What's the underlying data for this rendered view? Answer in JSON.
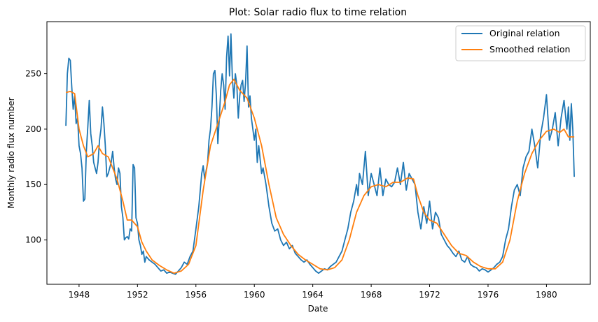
{
  "chart_data": {
    "type": "line",
    "title": "Plot: Solar radio flux to time relation",
    "xlabel": "Date",
    "ylabel": "Monthly radio flux number",
    "xlim": [
      1945.8,
      1983.0
    ],
    "ylim": [
      60,
      297
    ],
    "x_ticks": [
      1948,
      1952,
      1956,
      1960,
      1964,
      1968,
      1972,
      1976,
      1980
    ],
    "y_ticks": [
      100,
      150,
      200,
      250
    ],
    "legend_position": "top-right",
    "grid": false,
    "series": [
      {
        "name": "Original relation",
        "color": "#1f77b4",
        "points": [
          [
            1947.1,
            203
          ],
          [
            1947.2,
            250
          ],
          [
            1947.3,
            264
          ],
          [
            1947.4,
            262
          ],
          [
            1947.5,
            238
          ],
          [
            1947.6,
            218
          ],
          [
            1947.7,
            230
          ],
          [
            1947.8,
            205
          ],
          [
            1947.9,
            210
          ],
          [
            1948.0,
            185
          ],
          [
            1948.1,
            178
          ],
          [
            1948.2,
            165
          ],
          [
            1948.3,
            135
          ],
          [
            1948.4,
            137
          ],
          [
            1948.5,
            180
          ],
          [
            1948.6,
            202
          ],
          [
            1948.7,
            226
          ],
          [
            1948.8,
            196
          ],
          [
            1948.9,
            185
          ],
          [
            1949.0,
            170
          ],
          [
            1949.1,
            165
          ],
          [
            1949.2,
            160
          ],
          [
            1949.3,
            170
          ],
          [
            1949.4,
            190
          ],
          [
            1949.5,
            200
          ],
          [
            1949.6,
            220
          ],
          [
            1949.7,
            205
          ],
          [
            1949.8,
            185
          ],
          [
            1949.9,
            157
          ],
          [
            1950.0,
            160
          ],
          [
            1950.1,
            165
          ],
          [
            1950.2,
            170
          ],
          [
            1950.3,
            180
          ],
          [
            1950.4,
            165
          ],
          [
            1950.5,
            155
          ],
          [
            1950.6,
            150
          ],
          [
            1950.7,
            165
          ],
          [
            1950.8,
            160
          ],
          [
            1950.9,
            130
          ],
          [
            1951.0,
            120
          ],
          [
            1951.1,
            100
          ],
          [
            1951.2,
            102
          ],
          [
            1951.3,
            103
          ],
          [
            1951.4,
            101
          ],
          [
            1951.5,
            110
          ],
          [
            1951.6,
            108
          ],
          [
            1951.7,
            168
          ],
          [
            1951.8,
            165
          ],
          [
            1951.9,
            120
          ],
          [
            1952.0,
            115
          ],
          [
            1952.1,
            100
          ],
          [
            1952.2,
            95
          ],
          [
            1952.3,
            87
          ],
          [
            1952.4,
            90
          ],
          [
            1952.5,
            80
          ],
          [
            1952.6,
            85
          ],
          [
            1952.8,
            82
          ],
          [
            1953.0,
            80
          ],
          [
            1953.2,
            78
          ],
          [
            1953.4,
            75
          ],
          [
            1953.6,
            72
          ],
          [
            1953.8,
            73
          ],
          [
            1954.0,
            70
          ],
          [
            1954.2,
            71
          ],
          [
            1954.4,
            70
          ],
          [
            1954.6,
            69
          ],
          [
            1954.8,
            72
          ],
          [
            1955.0,
            75
          ],
          [
            1955.2,
            80
          ],
          [
            1955.4,
            78
          ],
          [
            1955.6,
            85
          ],
          [
            1955.8,
            90
          ],
          [
            1956.0,
            110
          ],
          [
            1956.2,
            130
          ],
          [
            1956.4,
            160
          ],
          [
            1956.5,
            167
          ],
          [
            1956.6,
            155
          ],
          [
            1956.8,
            170
          ],
          [
            1956.9,
            190
          ],
          [
            1957.0,
            200
          ],
          [
            1957.1,
            220
          ],
          [
            1957.2,
            250
          ],
          [
            1957.3,
            253
          ],
          [
            1957.4,
            230
          ],
          [
            1957.5,
            187
          ],
          [
            1957.6,
            210
          ],
          [
            1957.7,
            235
          ],
          [
            1957.8,
            250
          ],
          [
            1957.9,
            240
          ],
          [
            1958.0,
            218
          ],
          [
            1958.1,
            265
          ],
          [
            1958.2,
            284
          ],
          [
            1958.3,
            248
          ],
          [
            1958.4,
            286
          ],
          [
            1958.5,
            245
          ],
          [
            1958.6,
            228
          ],
          [
            1958.7,
            250
          ],
          [
            1958.8,
            240
          ],
          [
            1958.9,
            210
          ],
          [
            1959.0,
            230
          ],
          [
            1959.1,
            240
          ],
          [
            1959.2,
            244
          ],
          [
            1959.3,
            225
          ],
          [
            1959.4,
            242
          ],
          [
            1959.5,
            275
          ],
          [
            1959.6,
            220
          ],
          [
            1959.7,
            230
          ],
          [
            1959.8,
            210
          ],
          [
            1960.0,
            190
          ],
          [
            1960.1,
            200
          ],
          [
            1960.2,
            170
          ],
          [
            1960.3,
            185
          ],
          [
            1960.5,
            160
          ],
          [
            1960.6,
            165
          ],
          [
            1960.8,
            150
          ],
          [
            1961.0,
            130
          ],
          [
            1961.2,
            115
          ],
          [
            1961.4,
            108
          ],
          [
            1961.6,
            110
          ],
          [
            1961.8,
            100
          ],
          [
            1962.0,
            95
          ],
          [
            1962.2,
            98
          ],
          [
            1962.4,
            92
          ],
          [
            1962.6,
            95
          ],
          [
            1962.8,
            88
          ],
          [
            1963.0,
            85
          ],
          [
            1963.2,
            82
          ],
          [
            1963.4,
            80
          ],
          [
            1963.6,
            82
          ],
          [
            1963.8,
            78
          ],
          [
            1964.0,
            75
          ],
          [
            1964.2,
            72
          ],
          [
            1964.4,
            70
          ],
          [
            1964.6,
            72
          ],
          [
            1964.8,
            74
          ],
          [
            1965.0,
            73
          ],
          [
            1965.2,
            76
          ],
          [
            1965.4,
            78
          ],
          [
            1965.6,
            80
          ],
          [
            1965.8,
            85
          ],
          [
            1966.0,
            90
          ],
          [
            1966.2,
            100
          ],
          [
            1966.4,
            110
          ],
          [
            1966.6,
            125
          ],
          [
            1966.8,
            135
          ],
          [
            1967.0,
            150
          ],
          [
            1967.1,
            140
          ],
          [
            1967.2,
            160
          ],
          [
            1967.4,
            150
          ],
          [
            1967.6,
            180
          ],
          [
            1967.8,
            140
          ],
          [
            1968.0,
            160
          ],
          [
            1968.2,
            150
          ],
          [
            1968.4,
            140
          ],
          [
            1968.6,
            165
          ],
          [
            1968.8,
            140
          ],
          [
            1969.0,
            155
          ],
          [
            1969.2,
            150
          ],
          [
            1969.4,
            148
          ],
          [
            1969.6,
            152
          ],
          [
            1969.8,
            165
          ],
          [
            1970.0,
            150
          ],
          [
            1970.2,
            170
          ],
          [
            1970.4,
            145
          ],
          [
            1970.6,
            160
          ],
          [
            1970.8,
            155
          ],
          [
            1971.0,
            150
          ],
          [
            1971.2,
            125
          ],
          [
            1971.4,
            110
          ],
          [
            1971.6,
            130
          ],
          [
            1971.8,
            115
          ],
          [
            1972.0,
            135
          ],
          [
            1972.2,
            110
          ],
          [
            1972.4,
            125
          ],
          [
            1972.6,
            120
          ],
          [
            1972.8,
            105
          ],
          [
            1973.0,
            100
          ],
          [
            1973.2,
            95
          ],
          [
            1973.4,
            92
          ],
          [
            1973.6,
            88
          ],
          [
            1973.8,
            85
          ],
          [
            1974.0,
            90
          ],
          [
            1974.2,
            82
          ],
          [
            1974.4,
            80
          ],
          [
            1974.6,
            85
          ],
          [
            1974.8,
            78
          ],
          [
            1975.0,
            76
          ],
          [
            1975.2,
            75
          ],
          [
            1975.4,
            72
          ],
          [
            1975.6,
            74
          ],
          [
            1975.8,
            73
          ],
          [
            1976.0,
            71
          ],
          [
            1976.2,
            73
          ],
          [
            1976.4,
            75
          ],
          [
            1976.6,
            78
          ],
          [
            1976.8,
            80
          ],
          [
            1977.0,
            85
          ],
          [
            1977.2,
            100
          ],
          [
            1977.4,
            110
          ],
          [
            1977.6,
            130
          ],
          [
            1977.8,
            145
          ],
          [
            1978.0,
            150
          ],
          [
            1978.2,
            140
          ],
          [
            1978.4,
            165
          ],
          [
            1978.6,
            175
          ],
          [
            1978.8,
            180
          ],
          [
            1979.0,
            200
          ],
          [
            1979.2,
            185
          ],
          [
            1979.4,
            165
          ],
          [
            1979.6,
            195
          ],
          [
            1979.8,
            210
          ],
          [
            1980.0,
            231
          ],
          [
            1980.2,
            190
          ],
          [
            1980.4,
            200
          ],
          [
            1980.6,
            215
          ],
          [
            1980.8,
            185
          ],
          [
            1981.0,
            210
          ],
          [
            1981.2,
            226
          ],
          [
            1981.4,
            200
          ],
          [
            1981.5,
            220
          ],
          [
            1981.6,
            190
          ],
          [
            1981.7,
            223
          ],
          [
            1981.8,
            200
          ],
          [
            1981.9,
            157
          ]
        ]
      },
      {
        "name": "Smoothed relation",
        "color": "#ff7f0e",
        "points": [
          [
            1947.1,
            233
          ],
          [
            1947.4,
            234
          ],
          [
            1947.7,
            232
          ],
          [
            1948.0,
            200
          ],
          [
            1948.3,
            185
          ],
          [
            1948.6,
            175
          ],
          [
            1949.0,
            178
          ],
          [
            1949.3,
            185
          ],
          [
            1949.6,
            178
          ],
          [
            1950.0,
            175
          ],
          [
            1950.3,
            165
          ],
          [
            1950.6,
            155
          ],
          [
            1951.0,
            135
          ],
          [
            1951.3,
            118
          ],
          [
            1951.6,
            118
          ],
          [
            1952.0,
            112
          ],
          [
            1952.3,
            98
          ],
          [
            1952.6,
            90
          ],
          [
            1953.0,
            82
          ],
          [
            1953.5,
            77
          ],
          [
            1954.0,
            73
          ],
          [
            1954.5,
            70
          ],
          [
            1955.0,
            72
          ],
          [
            1955.5,
            78
          ],
          [
            1956.0,
            95
          ],
          [
            1956.5,
            145
          ],
          [
            1957.0,
            185
          ],
          [
            1957.5,
            205
          ],
          [
            1958.0,
            225
          ],
          [
            1958.3,
            240
          ],
          [
            1958.6,
            245
          ],
          [
            1959.0,
            235
          ],
          [
            1959.5,
            228
          ],
          [
            1960.0,
            210
          ],
          [
            1960.5,
            185
          ],
          [
            1961.0,
            150
          ],
          [
            1961.5,
            120
          ],
          [
            1962.0,
            105
          ],
          [
            1962.5,
            95
          ],
          [
            1963.0,
            87
          ],
          [
            1963.5,
            82
          ],
          [
            1964.0,
            78
          ],
          [
            1964.5,
            74
          ],
          [
            1965.0,
            73
          ],
          [
            1965.5,
            75
          ],
          [
            1966.0,
            82
          ],
          [
            1966.5,
            100
          ],
          [
            1967.0,
            125
          ],
          [
            1967.5,
            140
          ],
          [
            1968.0,
            148
          ],
          [
            1968.5,
            150
          ],
          [
            1969.0,
            148
          ],
          [
            1969.5,
            152
          ],
          [
            1970.0,
            152
          ],
          [
            1970.5,
            156
          ],
          [
            1970.9,
            155
          ],
          [
            1971.2,
            140
          ],
          [
            1971.6,
            125
          ],
          [
            1972.0,
            118
          ],
          [
            1972.5,
            115
          ],
          [
            1973.0,
            105
          ],
          [
            1973.5,
            95
          ],
          [
            1974.0,
            88
          ],
          [
            1974.5,
            86
          ],
          [
            1975.0,
            80
          ],
          [
            1975.5,
            76
          ],
          [
            1976.0,
            74
          ],
          [
            1976.5,
            74
          ],
          [
            1977.0,
            80
          ],
          [
            1977.5,
            100
          ],
          [
            1978.0,
            135
          ],
          [
            1978.5,
            160
          ],
          [
            1979.0,
            178
          ],
          [
            1979.5,
            190
          ],
          [
            1980.0,
            198
          ],
          [
            1980.5,
            200
          ],
          [
            1980.9,
            197
          ],
          [
            1981.2,
            200
          ],
          [
            1981.5,
            193
          ],
          [
            1981.9,
            193
          ]
        ]
      }
    ]
  }
}
